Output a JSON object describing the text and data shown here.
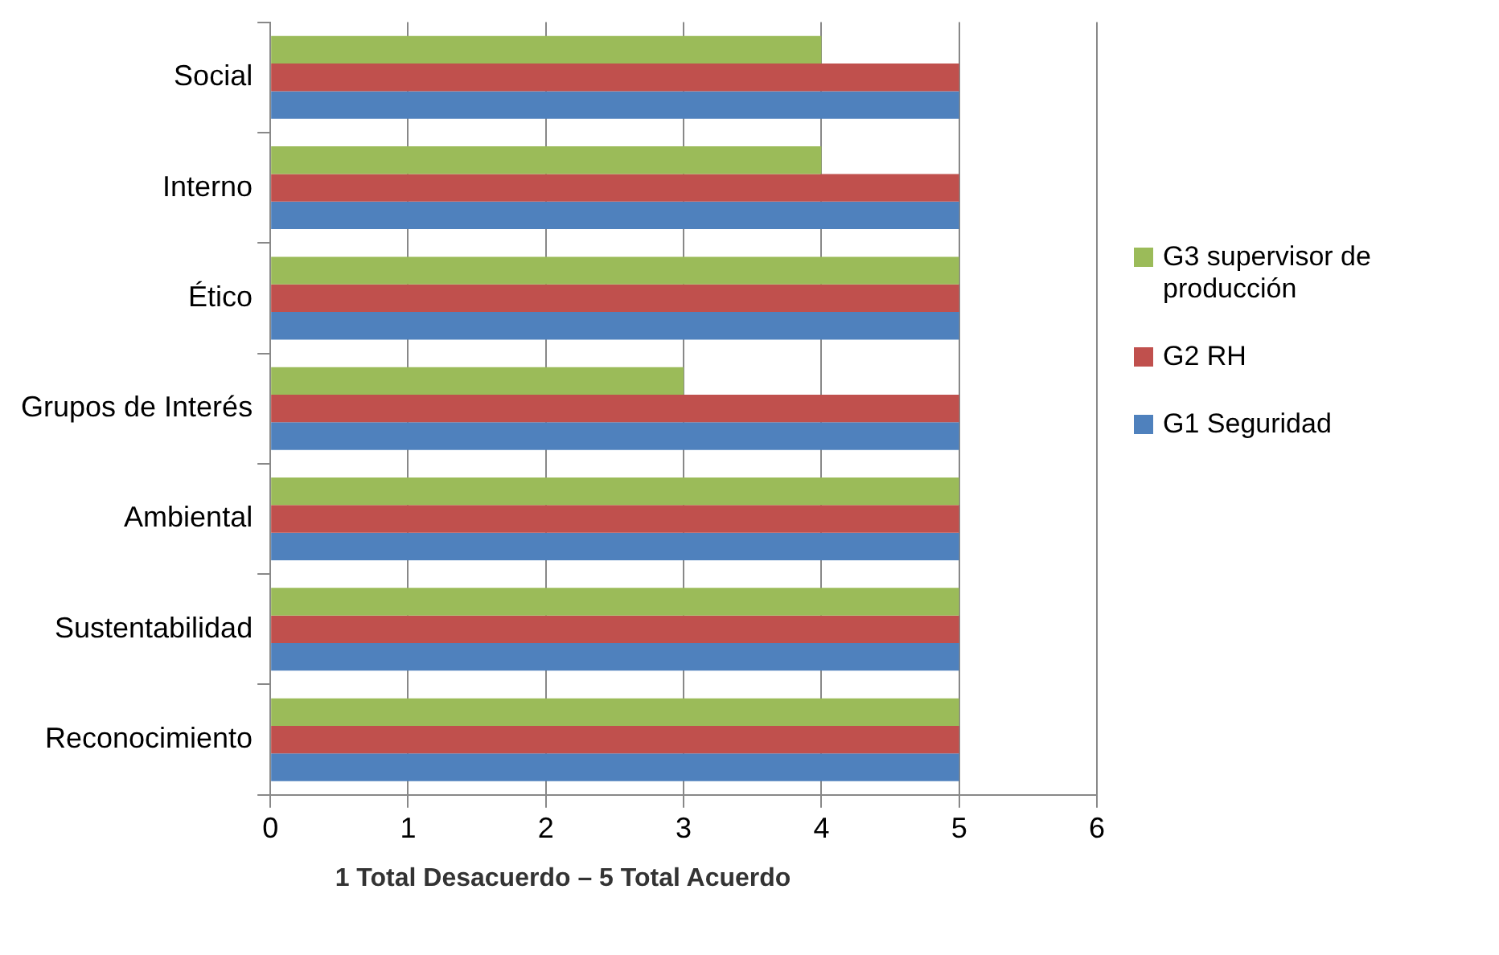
{
  "chart_data": {
    "type": "bar",
    "orientation": "horizontal",
    "categories": [
      "Social",
      "Interno",
      "Ético",
      "Grupos de Interés",
      "Ambiental",
      "Sustentabilidad",
      "Reconocimiento"
    ],
    "series": [
      {
        "name": "G3 supervisor de producción",
        "color": "#9bbb59",
        "values": [
          4,
          4,
          5,
          3,
          5,
          5,
          5
        ]
      },
      {
        "name": "G2 RH",
        "color": "#c0504d",
        "values": [
          5,
          5,
          5,
          5,
          5,
          5,
          5
        ]
      },
      {
        "name": "G1 Seguridad",
        "color": "#4f81bd",
        "values": [
          5,
          5,
          5,
          5,
          5,
          5,
          5
        ]
      }
    ],
    "xlim": [
      0,
      6
    ],
    "xticks": [
      0,
      1,
      2,
      3,
      4,
      5,
      6
    ],
    "grid": "x",
    "legend": "right",
    "annotations": [
      "1 Total Desacuerdo – 5 Total Acuerdo"
    ]
  }
}
